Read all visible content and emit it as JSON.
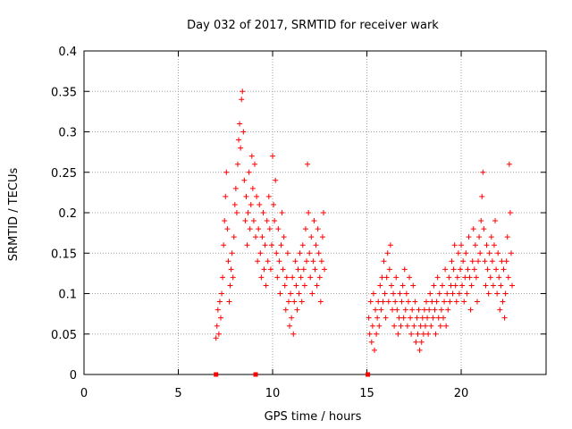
{
  "chart_data": {
    "type": "scatter",
    "title": "Day 032 of 2017, SRMTID for receiver wark",
    "xlabel": "GPS time / hours",
    "ylabel": "SRMTID / TECUs",
    "xlim": [
      0,
      24.5
    ],
    "ylim": [
      0,
      0.4
    ],
    "x_ticks": [
      0,
      5,
      10,
      15,
      20
    ],
    "x_tick_labels": [
      "0",
      "5",
      "10",
      "15",
      "20"
    ],
    "y_ticks": [
      0,
      0.05,
      0.1,
      0.15,
      0.2,
      0.25,
      0.3,
      0.35,
      0.4
    ],
    "y_tick_labels": [
      "0",
      "0.05",
      "0.1",
      "0.15",
      "0.2",
      "0.25",
      "0.3",
      "0.35",
      "0.4"
    ],
    "grid": true,
    "marker": "plus",
    "color": "#ff0000",
    "series": [
      {
        "values": [
          [
            7.0,
            0.045
          ],
          [
            7.05,
            0.06
          ],
          [
            7.1,
            0.08
          ],
          [
            7.15,
            0.05
          ],
          [
            7.2,
            0.09
          ],
          [
            7.25,
            0.07
          ],
          [
            7.3,
            0.1
          ],
          [
            7.35,
            0.12
          ],
          [
            7.4,
            0.16
          ],
          [
            7.45,
            0.19
          ],
          [
            7.5,
            0.22
          ],
          [
            7.55,
            0.25
          ],
          [
            7.6,
            0.18
          ],
          [
            7.65,
            0.14
          ],
          [
            7.7,
            0.09
          ],
          [
            7.75,
            0.11
          ],
          [
            7.8,
            0.13
          ],
          [
            7.85,
            0.15
          ],
          [
            7.9,
            0.12
          ],
          [
            7.95,
            0.17
          ],
          [
            8.0,
            0.21
          ],
          [
            8.05,
            0.23
          ],
          [
            8.1,
            0.2
          ],
          [
            8.15,
            0.26
          ],
          [
            8.2,
            0.29
          ],
          [
            8.25,
            0.31
          ],
          [
            8.3,
            0.28
          ],
          [
            8.35,
            0.34
          ],
          [
            8.4,
            0.35
          ],
          [
            8.45,
            0.3
          ],
          [
            8.5,
            0.24
          ],
          [
            8.55,
            0.19
          ],
          [
            8.6,
            0.22
          ],
          [
            8.65,
            0.16
          ],
          [
            8.7,
            0.2
          ],
          [
            8.75,
            0.25
          ],
          [
            8.8,
            0.18
          ],
          [
            8.85,
            0.21
          ],
          [
            8.9,
            0.27
          ],
          [
            8.95,
            0.23
          ],
          [
            9.0,
            0.19
          ],
          [
            9.05,
            0.26
          ],
          [
            9.1,
            0.17
          ],
          [
            9.15,
            0.22
          ],
          [
            9.2,
            0.14
          ],
          [
            9.25,
            0.18
          ],
          [
            9.3,
            0.21
          ],
          [
            9.35,
            0.15
          ],
          [
            9.4,
            0.12
          ],
          [
            9.45,
            0.17
          ],
          [
            9.5,
            0.2
          ],
          [
            9.55,
            0.13
          ],
          [
            9.6,
            0.16
          ],
          [
            9.65,
            0.11
          ],
          [
            9.7,
            0.19
          ],
          [
            9.75,
            0.14
          ],
          [
            9.8,
            0.22
          ],
          [
            9.85,
            0.18
          ],
          [
            9.9,
            0.13
          ],
          [
            9.95,
            0.16
          ],
          [
            10.0,
            0.27
          ],
          [
            10.05,
            0.21
          ],
          [
            10.1,
            0.19
          ],
          [
            10.15,
            0.24
          ],
          [
            10.2,
            0.15
          ],
          [
            10.25,
            0.12
          ],
          [
            10.3,
            0.18
          ],
          [
            10.35,
            0.14
          ],
          [
            10.4,
            0.1
          ],
          [
            10.45,
            0.16
          ],
          [
            10.5,
            0.2
          ],
          [
            10.55,
            0.13
          ],
          [
            10.6,
            0.17
          ],
          [
            10.65,
            0.11
          ],
          [
            10.7,
            0.08
          ],
          [
            10.75,
            0.12
          ],
          [
            10.8,
            0.15
          ],
          [
            10.85,
            0.09
          ],
          [
            10.9,
            0.06
          ],
          [
            10.95,
            0.1
          ],
          [
            11.0,
            0.07
          ],
          [
            11.05,
            0.12
          ],
          [
            11.1,
            0.05
          ],
          [
            11.15,
            0.09
          ],
          [
            11.2,
            0.14
          ],
          [
            11.25,
            0.11
          ],
          [
            11.3,
            0.08
          ],
          [
            11.35,
            0.13
          ],
          [
            11.4,
            0.1
          ],
          [
            11.45,
            0.15
          ],
          [
            11.5,
            0.12
          ],
          [
            11.55,
            0.09
          ],
          [
            11.6,
            0.16
          ],
          [
            11.65,
            0.13
          ],
          [
            11.7,
            0.11
          ],
          [
            11.75,
            0.18
          ],
          [
            11.8,
            0.14
          ],
          [
            11.85,
            0.26
          ],
          [
            11.9,
            0.2
          ],
          [
            11.95,
            0.15
          ],
          [
            12.0,
            0.12
          ],
          [
            12.05,
            0.17
          ],
          [
            12.1,
            0.1
          ],
          [
            12.15,
            0.14
          ],
          [
            12.2,
            0.19
          ],
          [
            12.25,
            0.13
          ],
          [
            12.3,
            0.16
          ],
          [
            12.35,
            0.11
          ],
          [
            12.4,
            0.18
          ],
          [
            12.45,
            0.15
          ],
          [
            12.5,
            0.12
          ],
          [
            12.55,
            0.09
          ],
          [
            12.6,
            0.14
          ],
          [
            12.65,
            0.17
          ],
          [
            12.7,
            0.2
          ],
          [
            12.75,
            0.13
          ],
          [
            15.1,
            0.07
          ],
          [
            15.15,
            0.05
          ],
          [
            15.2,
            0.09
          ],
          [
            15.25,
            0.04
          ],
          [
            15.3,
            0.06
          ],
          [
            15.35,
            0.1
          ],
          [
            15.4,
            0.03
          ],
          [
            15.45,
            0.08
          ],
          [
            15.5,
            0.05
          ],
          [
            15.55,
            0.07
          ],
          [
            15.6,
            0.09
          ],
          [
            15.65,
            0.06
          ],
          [
            15.7,
            0.11
          ],
          [
            15.75,
            0.08
          ],
          [
            15.8,
            0.12
          ],
          [
            15.85,
            0.09
          ],
          [
            15.9,
            0.14
          ],
          [
            15.95,
            0.1
          ],
          [
            16.0,
            0.07
          ],
          [
            16.05,
            0.12
          ],
          [
            16.1,
            0.15
          ],
          [
            16.15,
            0.09
          ],
          [
            16.2,
            0.13
          ],
          [
            16.25,
            0.16
          ],
          [
            16.3,
            0.11
          ],
          [
            16.35,
            0.08
          ],
          [
            16.4,
            0.1
          ],
          [
            16.45,
            0.06
          ],
          [
            16.5,
            0.09
          ],
          [
            16.55,
            0.12
          ],
          [
            16.6,
            0.08
          ],
          [
            16.65,
            0.05
          ],
          [
            16.7,
            0.07
          ],
          [
            16.75,
            0.1
          ],
          [
            16.8,
            0.06
          ],
          [
            16.85,
            0.09
          ],
          [
            16.9,
            0.11
          ],
          [
            16.95,
            0.07
          ],
          [
            17.0,
            0.13
          ],
          [
            17.05,
            0.08
          ],
          [
            17.1,
            0.1
          ],
          [
            17.15,
            0.06
          ],
          [
            17.2,
            0.09
          ],
          [
            17.25,
            0.12
          ],
          [
            17.3,
            0.07
          ],
          [
            17.35,
            0.05
          ],
          [
            17.4,
            0.08
          ],
          [
            17.45,
            0.11
          ],
          [
            17.5,
            0.06
          ],
          [
            17.55,
            0.09
          ],
          [
            17.6,
            0.04
          ],
          [
            17.65,
            0.07
          ],
          [
            17.7,
            0.05
          ],
          [
            17.75,
            0.08
          ],
          [
            17.8,
            0.03
          ],
          [
            17.85,
            0.06
          ],
          [
            17.9,
            0.04
          ],
          [
            17.95,
            0.07
          ],
          [
            18.0,
            0.05
          ],
          [
            18.05,
            0.08
          ],
          [
            18.1,
            0.06
          ],
          [
            18.15,
            0.09
          ],
          [
            18.2,
            0.07
          ],
          [
            18.25,
            0.05
          ],
          [
            18.3,
            0.08
          ],
          [
            18.35,
            0.1
          ],
          [
            18.4,
            0.06
          ],
          [
            18.45,
            0.09
          ],
          [
            18.5,
            0.07
          ],
          [
            18.55,
            0.11
          ],
          [
            18.6,
            0.08
          ],
          [
            18.65,
            0.05
          ],
          [
            18.7,
            0.09
          ],
          [
            18.75,
            0.12
          ],
          [
            18.8,
            0.07
          ],
          [
            18.85,
            0.1
          ],
          [
            18.9,
            0.06
          ],
          [
            18.95,
            0.08
          ],
          [
            19.0,
            0.11
          ],
          [
            19.05,
            0.07
          ],
          [
            19.1,
            0.09
          ],
          [
            19.15,
            0.13
          ],
          [
            19.2,
            0.06
          ],
          [
            19.25,
            0.1
          ],
          [
            19.3,
            0.08
          ],
          [
            19.35,
            0.12
          ],
          [
            19.4,
            0.09
          ],
          [
            19.45,
            0.11
          ],
          [
            19.5,
            0.14
          ],
          [
            19.55,
            0.1
          ],
          [
            19.6,
            0.13
          ],
          [
            19.65,
            0.16
          ],
          [
            19.7,
            0.11
          ],
          [
            19.75,
            0.09
          ],
          [
            19.8,
            0.12
          ],
          [
            19.85,
            0.15
          ],
          [
            19.9,
            0.1
          ],
          [
            19.95,
            0.13
          ],
          [
            20.0,
            0.16
          ],
          [
            20.05,
            0.11
          ],
          [
            20.1,
            0.14
          ],
          [
            20.15,
            0.09
          ],
          [
            20.2,
            0.12
          ],
          [
            20.25,
            0.15
          ],
          [
            20.3,
            0.1
          ],
          [
            20.35,
            0.13
          ],
          [
            20.4,
            0.17
          ],
          [
            20.45,
            0.12
          ],
          [
            20.5,
            0.08
          ],
          [
            20.55,
            0.11
          ],
          [
            20.6,
            0.14
          ],
          [
            20.65,
            0.18
          ],
          [
            20.7,
            0.13
          ],
          [
            20.75,
            0.16
          ],
          [
            20.8,
            0.12
          ],
          [
            20.85,
            0.09
          ],
          [
            20.9,
            0.14
          ],
          [
            20.95,
            0.17
          ],
          [
            21.0,
            0.15
          ],
          [
            21.05,
            0.19
          ],
          [
            21.1,
            0.22
          ],
          [
            21.15,
            0.25
          ],
          [
            21.2,
            0.18
          ],
          [
            21.25,
            0.14
          ],
          [
            21.3,
            0.11
          ],
          [
            21.35,
            0.16
          ],
          [
            21.4,
            0.13
          ],
          [
            21.45,
            0.1
          ],
          [
            21.5,
            0.15
          ],
          [
            21.55,
            0.12
          ],
          [
            21.6,
            0.17
          ],
          [
            21.65,
            0.14
          ],
          [
            21.7,
            0.11
          ],
          [
            21.75,
            0.16
          ],
          [
            21.8,
            0.19
          ],
          [
            21.85,
            0.13
          ],
          [
            21.9,
            0.1
          ],
          [
            21.95,
            0.15
          ],
          [
            22.0,
            0.12
          ],
          [
            22.05,
            0.08
          ],
          [
            22.1,
            0.11
          ],
          [
            22.15,
            0.14
          ],
          [
            22.2,
            0.09
          ],
          [
            22.25,
            0.13
          ],
          [
            22.3,
            0.07
          ],
          [
            22.35,
            0.1
          ],
          [
            22.4,
            0.14
          ],
          [
            22.45,
            0.17
          ],
          [
            22.5,
            0.12
          ],
          [
            22.55,
            0.26
          ],
          [
            22.6,
            0.2
          ],
          [
            22.65,
            0.15
          ],
          [
            22.7,
            0.11
          ]
        ]
      }
    ],
    "zero_markers": [
      7.0,
      9.1,
      15.05
    ]
  }
}
